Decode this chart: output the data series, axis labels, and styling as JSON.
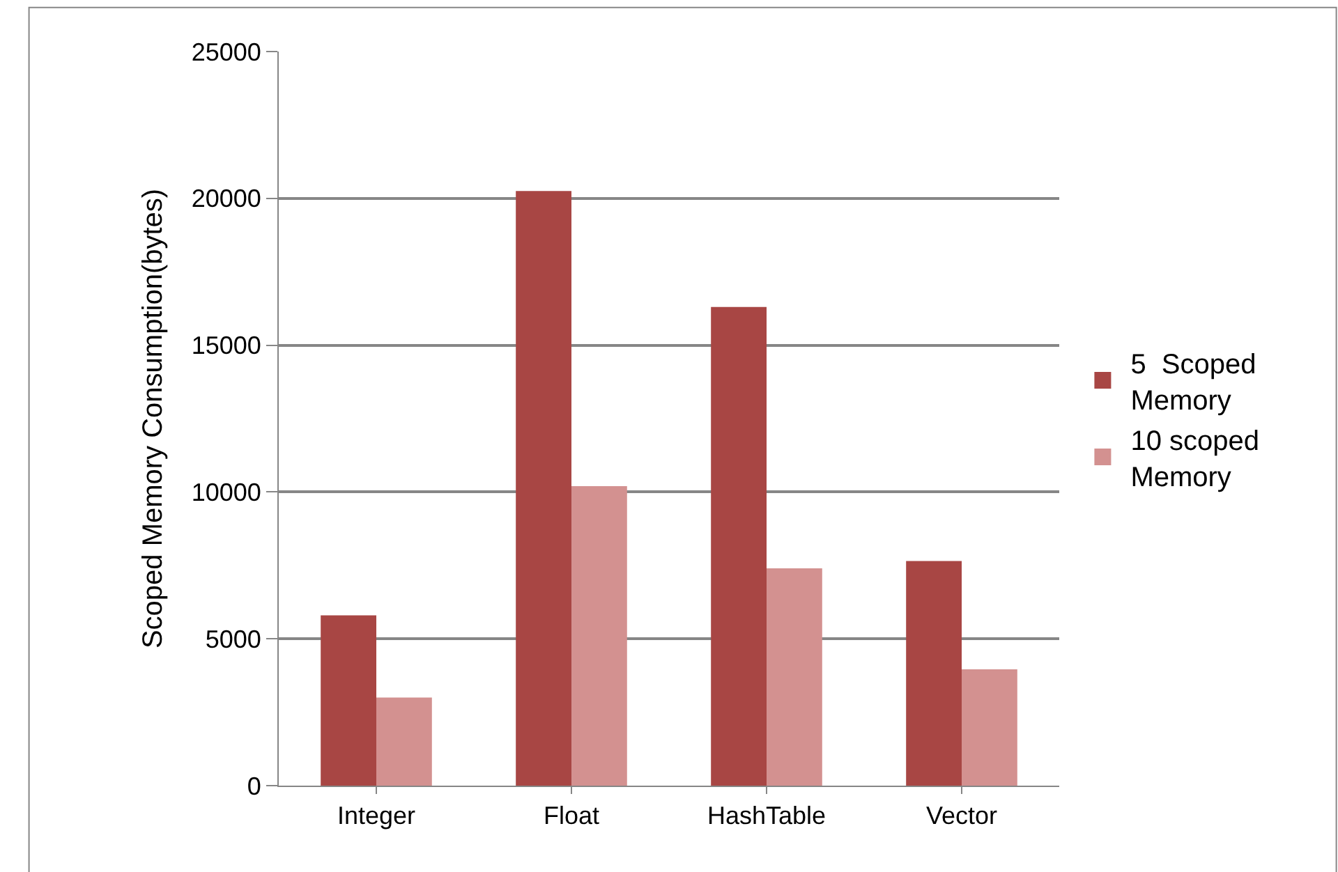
{
  "chart_data": {
    "type": "bar",
    "ylabel": "Scoped Memory Consumption(bytes)",
    "categories": [
      "Integer",
      "Float",
      "HashTable",
      "Vector"
    ],
    "series": [
      {
        "name": "5  Scoped Memory",
        "color": "#a84644",
        "values": [
          5800,
          20250,
          16300,
          7650
        ]
      },
      {
        "name": "10 scoped Memory",
        "color": "#d39190",
        "values": [
          3000,
          10200,
          7400,
          3960
        ]
      }
    ],
    "ylim": [
      0,
      25000
    ],
    "yticks": [
      0,
      5000,
      10000,
      15000,
      20000,
      25000
    ],
    "grid": "y",
    "legend": "right"
  }
}
